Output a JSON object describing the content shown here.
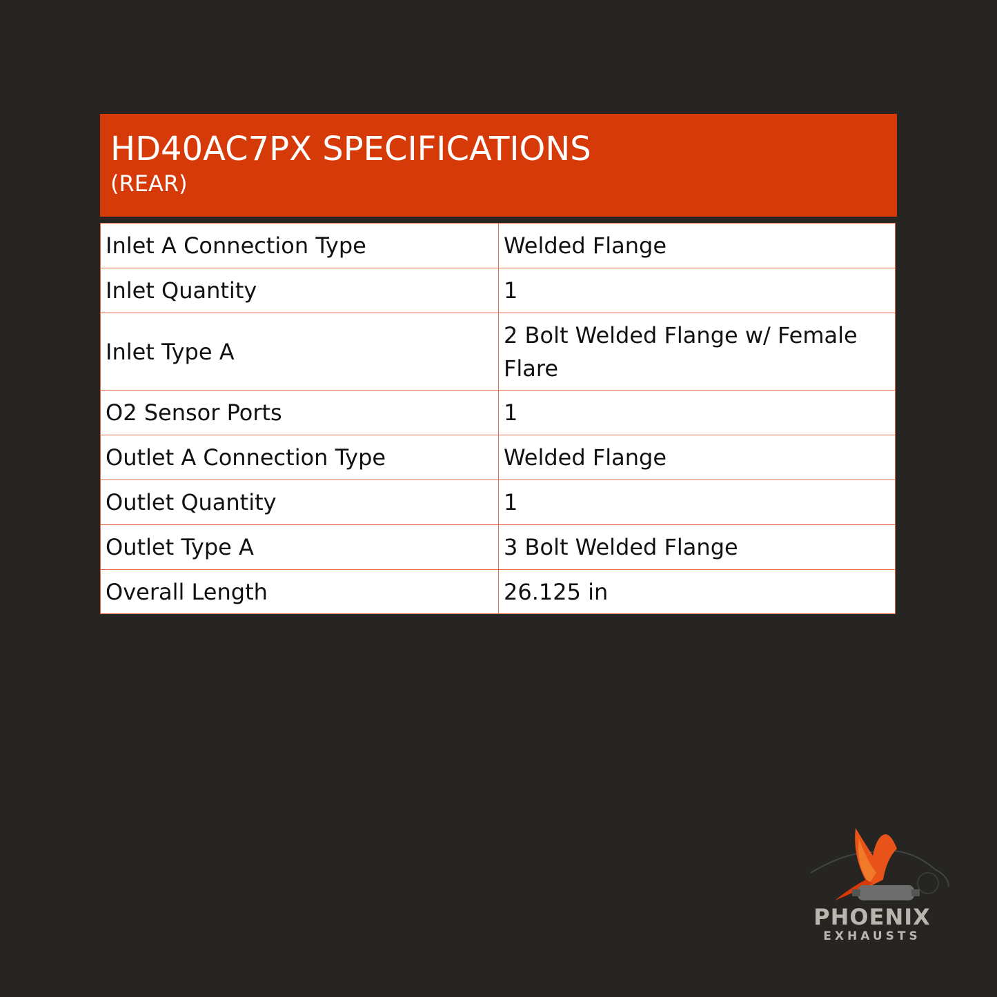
{
  "header": {
    "title": "HD40AC7PX SPECIFICATIONS",
    "subtitle": "(REAR)"
  },
  "specs": [
    {
      "label": "Inlet A Connection Type",
      "value": "Welded Flange"
    },
    {
      "label": "Inlet Quantity",
      "value": "1"
    },
    {
      "label": "Inlet Type A",
      "value": "2 Bolt Welded Flange w/ Female Flare"
    },
    {
      "label": "O2 Sensor Ports",
      "value": "1"
    },
    {
      "label": "Outlet A Connection Type",
      "value": "Welded Flange"
    },
    {
      "label": "Outlet Quantity",
      "value": "1"
    },
    {
      "label": "Outlet Type A",
      "value": "3 Bolt Welded Flange"
    },
    {
      "label": "Overall Length",
      "value": "26.125 in"
    }
  ],
  "logo": {
    "name": "PHOENIX",
    "tagline": "EXHAUSTS"
  },
  "colors": {
    "background": "#262521",
    "accent": "#d63a09",
    "border": "#e06a45"
  }
}
